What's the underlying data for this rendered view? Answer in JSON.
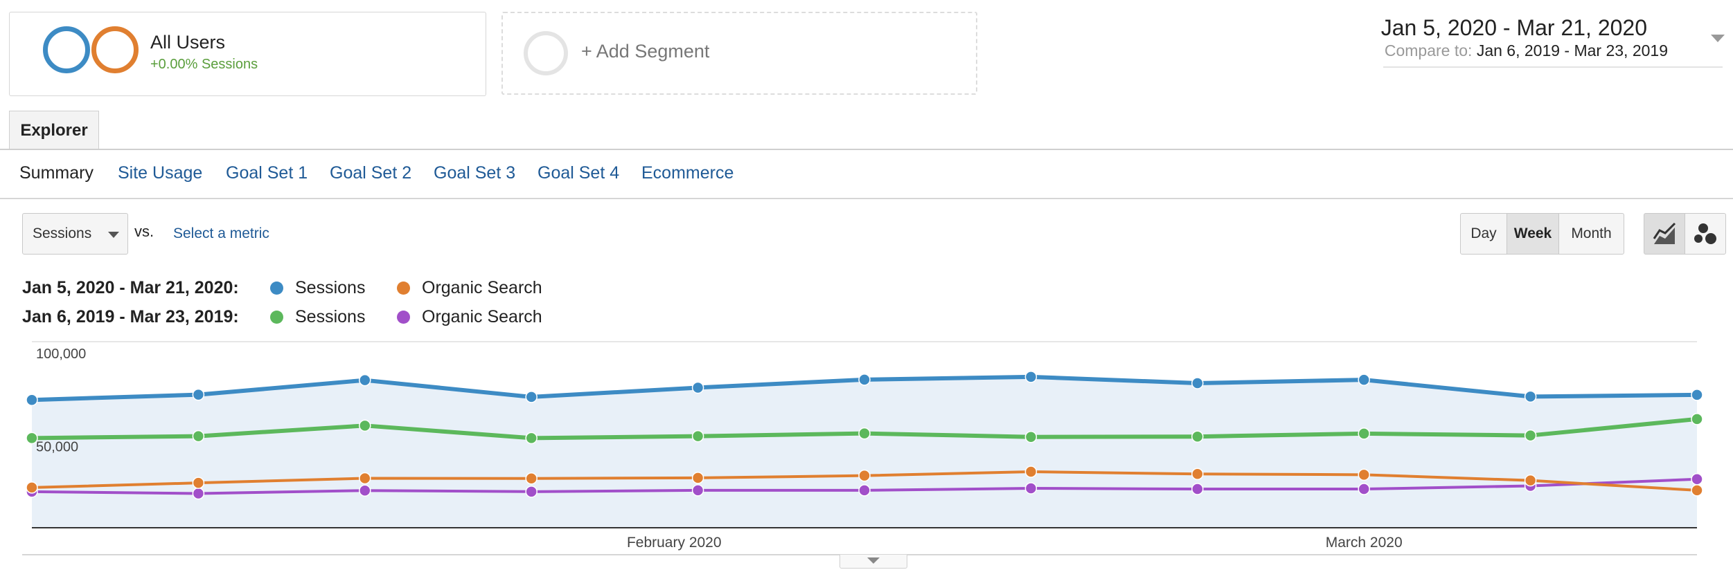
{
  "segments": {
    "active": {
      "title": "All Users",
      "subtitle": "+0.00% Sessions",
      "colors": [
        "#3d8bc4",
        "#e07f30"
      ]
    },
    "add_label": "+ Add Segment"
  },
  "date_range": {
    "main": "Jan 5, 2020 - Mar 21, 2020",
    "compare_label": "Compare to:",
    "compare_value": "Jan 6, 2019 - Mar 23, 2019"
  },
  "tabs": {
    "explorer": "Explorer"
  },
  "subnav": {
    "items": [
      "Summary",
      "Site Usage",
      "Goal Set 1",
      "Goal Set 2",
      "Goal Set 3",
      "Goal Set 4",
      "Ecommerce"
    ],
    "active_index": 0
  },
  "controls": {
    "metric_value": "Sessions",
    "vs": "vs.",
    "select_metric": "Select a metric",
    "granularity": [
      "Day",
      "Week",
      "Month"
    ],
    "granularity_active": "Week",
    "view_icons": [
      "line-chart-icon",
      "motion-chart-icon"
    ]
  },
  "legend": {
    "rows": [
      {
        "range": "Jan 5, 2020 - Mar 21, 2020:",
        "items": [
          {
            "name": "Sessions",
            "color": "#3d8bc4"
          },
          {
            "name": "Organic Search",
            "color": "#e07f30"
          }
        ]
      },
      {
        "range": "Jan 6, 2019 - Mar 23, 2019:",
        "items": [
          {
            "name": "Sessions",
            "color": "#5cb85c"
          },
          {
            "name": "Organic Search",
            "color": "#a14fc9"
          }
        ]
      }
    ]
  },
  "chart_data": {
    "type": "line",
    "x": [
      "2020-01-05",
      "2020-01-12",
      "2020-01-19",
      "2020-01-26",
      "2020-02-02",
      "2020-02-09",
      "2020-02-16",
      "2020-02-23",
      "2020-03-01",
      "2020-03-08",
      "2020-03-15"
    ],
    "x_tick_labels": [
      {
        "label": "February 2020",
        "x": "2020-02-01"
      },
      {
        "label": "March 2020",
        "x": "2020-03-01"
      }
    ],
    "y_tick_labels": [
      "100,000",
      "50,000"
    ],
    "ylim": [
      0,
      100000
    ],
    "grid": true,
    "series": [
      {
        "name": "Sessions",
        "period": "Jan 5, 2020 - Mar 21, 2020",
        "color": "#3d8bc4",
        "area": true,
        "values": [
          68700,
          71500,
          79300,
          70300,
          75300,
          79600,
          81100,
          77700,
          79500,
          70500,
          71400
        ]
      },
      {
        "name": "Sessions",
        "period": "Jan 6, 2019 - Mar 23, 2019",
        "color": "#5cb85c",
        "area": false,
        "values": [
          48200,
          49200,
          54900,
          48200,
          49200,
          50700,
          48800,
          49000,
          50600,
          49600,
          58400
        ]
      },
      {
        "name": "Organic Search",
        "period": "Jan 5, 2020 - Mar 21, 2020",
        "color": "#e07f30",
        "area": false,
        "values": [
          21600,
          24100,
          26600,
          26500,
          26800,
          28000,
          30100,
          28900,
          28500,
          25400,
          20100
        ]
      },
      {
        "name": "Organic Search",
        "period": "Jan 6, 2019 - Mar 23, 2019",
        "color": "#a14fc9",
        "area": false,
        "values": [
          19400,
          18400,
          20000,
          19400,
          20100,
          20100,
          21200,
          20800,
          20800,
          22500,
          26100
        ]
      }
    ]
  }
}
